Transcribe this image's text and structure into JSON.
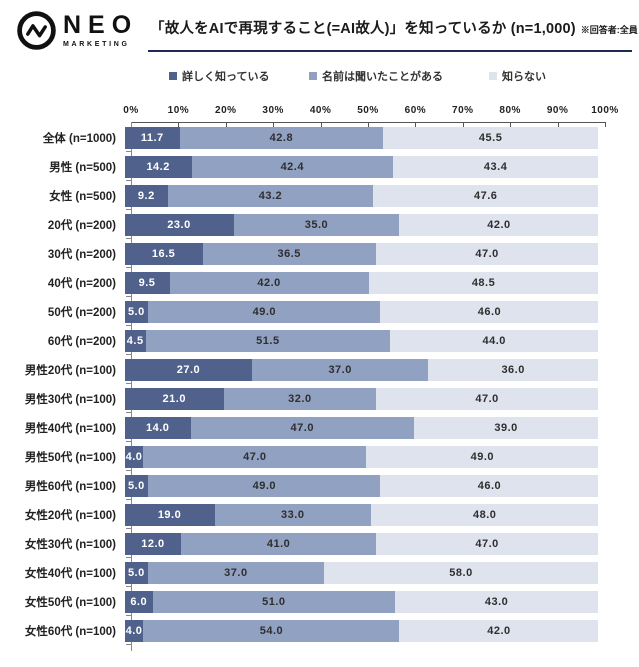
{
  "header": {
    "logo_text": "NEO",
    "logo_sub": "MARKETING",
    "title": "「故人をAIで再現すること(=AI故人)」を知っているか (n=1,000)",
    "note": "※回答者:全員"
  },
  "legend": [
    {
      "label": "詳しく知っている",
      "color": "#50628c"
    },
    {
      "label": "名前は聞いたことがある",
      "color": "#91a1c2"
    },
    {
      "label": "知らない",
      "color": "#dfe3ed"
    }
  ],
  "chart_data": {
    "type": "bar",
    "orientation": "horizontal",
    "stacked": true,
    "title": "「故人をAIで再現すること(=AI故人)」を知っているか (n=1,000)",
    "xlim": [
      0,
      100
    ],
    "x_ticks": [
      "0%",
      "10%",
      "20%",
      "30%",
      "40%",
      "50%",
      "60%",
      "70%",
      "80%",
      "90%",
      "100%"
    ],
    "grid": false,
    "legend_position": "top",
    "categories": [
      "全体 (n=1000)",
      "男性 (n=500)",
      "女性 (n=500)",
      "20代 (n=200)",
      "30代 (n=200)",
      "40代 (n=200)",
      "50代 (n=200)",
      "60代 (n=200)",
      "男性20代 (n=100)",
      "男性30代 (n=100)",
      "男性40代 (n=100)",
      "男性50代 (n=100)",
      "男性60代 (n=100)",
      "女性20代 (n=100)",
      "女性30代 (n=100)",
      "女性40代 (n=100)",
      "女性50代 (n=100)",
      "女性60代 (n=100)"
    ],
    "series": [
      {
        "name": "詳しく知っている",
        "key": "know-well",
        "color": "#50628c",
        "text_color": "#ffffff",
        "values": [
          11.7,
          14.2,
          9.2,
          23.0,
          16.5,
          9.5,
          5.0,
          4.5,
          27.0,
          21.0,
          14.0,
          4.0,
          5.0,
          19.0,
          12.0,
          5.0,
          6.0,
          4.0
        ]
      },
      {
        "name": "名前は聞いたことがある",
        "key": "heard-name",
        "color": "#91a1c2",
        "text_color": "#2e2e2e",
        "values": [
          42.8,
          42.4,
          43.2,
          35.0,
          36.5,
          42.0,
          49.0,
          51.5,
          37.0,
          32.0,
          47.0,
          47.0,
          49.0,
          33.0,
          41.0,
          37.0,
          51.0,
          54.0
        ]
      },
      {
        "name": "知らない",
        "key": "dont-know",
        "color": "#dfe3ed",
        "text_color": "#2e2e2e",
        "values": [
          45.5,
          43.4,
          47.6,
          42.0,
          47.0,
          48.5,
          46.0,
          44.0,
          36.0,
          47.0,
          39.0,
          49.0,
          46.0,
          48.0,
          47.0,
          58.0,
          43.0,
          42.0
        ]
      }
    ]
  }
}
